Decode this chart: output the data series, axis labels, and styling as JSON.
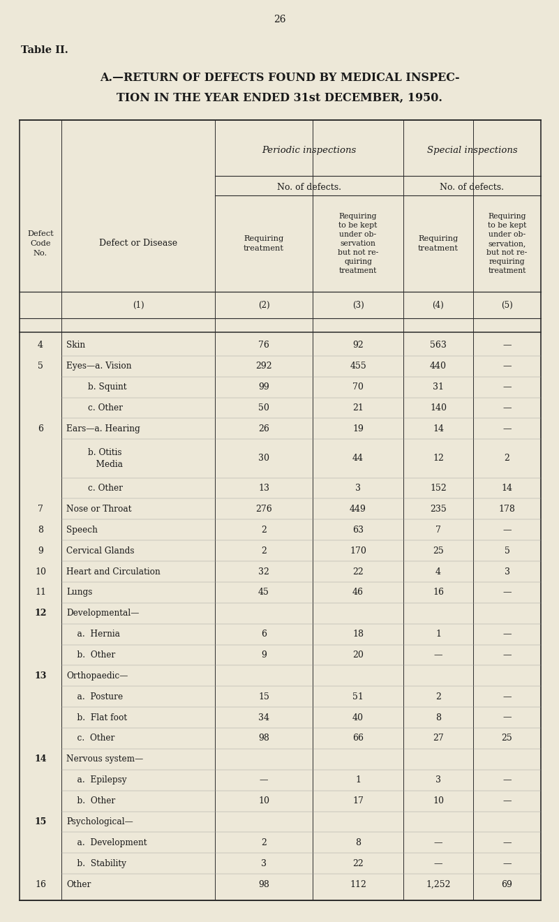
{
  "page_number": "26",
  "table_label": "Table II.",
  "title_line1": "A.—RETURN OF DEFECTS FOUND BY MEDICAL INSPEC-",
  "title_line2": "TION IN THE YEAR ENDED 31st DECEMBER, 1950.",
  "col_header_periodic": "Periodic inspections",
  "col_header_special": "Special inspections",
  "col_header_no_defects": "No. of defects.",
  "col1_header": "Defect\nCode\nNo.",
  "col_disease_header": "Defect or Disease",
  "col2_header": "Requiring\ntreatment",
  "col3_header": "Requiring\nto be kept\nunder ob-\nservation\nbut not re-\nquiring\ntreatment",
  "col4_header": "Requiring\ntreatment",
  "col5_header": "Requiring\nto be kept\nunder ob-\nservation,\nbut not re-\nrequiring\ntreatment",
  "col_num_labels": [
    "(1)",
    "(2)",
    "(3)",
    "(4)",
    "(5)"
  ],
  "rows": [
    {
      "code": "4",
      "disease": "Skin",
      "c2": "76",
      "c3": "92",
      "c4": "563",
      "c5": "—"
    },
    {
      "code": "5",
      "disease": "Eyes—a. Vision",
      "c2": "292",
      "c3": "455",
      "c4": "440",
      "c5": "—"
    },
    {
      "code": "",
      "disease": "        b. Squint",
      "c2": "99",
      "c3": "70",
      "c4": "31",
      "c5": "—"
    },
    {
      "code": "",
      "disease": "        c. Other",
      "c2": "50",
      "c3": "21",
      "c4": "140",
      "c5": "—"
    },
    {
      "code": "6",
      "disease": "Ears—a. Hearing",
      "c2": "26",
      "c3": "19",
      "c4": "14",
      "c5": "—"
    },
    {
      "code": "",
      "disease": "        b. Otitis\n           Media",
      "c2": "30",
      "c3": "44",
      "c4": "12",
      "c5": "2"
    },
    {
      "code": "",
      "disease": "        c. Other",
      "c2": "13",
      "c3": "3",
      "c4": "152",
      "c5": "14"
    },
    {
      "code": "7",
      "disease": "Nose or Throat",
      "c2": "276",
      "c3": "449",
      "c4": "235",
      "c5": "178"
    },
    {
      "code": "8",
      "disease": "Speech",
      "c2": "2",
      "c3": "63",
      "c4": "7",
      "c5": "—"
    },
    {
      "code": "9",
      "disease": "Cervical Glands",
      "c2": "2",
      "c3": "170",
      "c4": "25",
      "c5": "5"
    },
    {
      "code": "10",
      "disease": "Heart and Circulation",
      "c2": "32",
      "c3": "22",
      "c4": "4",
      "c5": "3"
    },
    {
      "code": "11",
      "disease": "Lungs",
      "c2": "45",
      "c3": "46",
      "c4": "16",
      "c5": "—"
    },
    {
      "code": "12",
      "disease": "Developmental—",
      "c2": "",
      "c3": "",
      "c4": "",
      "c5": ""
    },
    {
      "code": "",
      "disease": "    a.  Hernia",
      "c2": "6",
      "c3": "18",
      "c4": "1",
      "c5": "—"
    },
    {
      "code": "",
      "disease": "    b.  Other",
      "c2": "9",
      "c3": "20",
      "c4": "—",
      "c5": "—"
    },
    {
      "code": "13",
      "disease": "Orthopaedic—",
      "c2": "",
      "c3": "",
      "c4": "",
      "c5": ""
    },
    {
      "code": "",
      "disease": "    a.  Posture",
      "c2": "15",
      "c3": "51",
      "c4": "2",
      "c5": "—"
    },
    {
      "code": "",
      "disease": "    b.  Flat foot",
      "c2": "34",
      "c3": "40",
      "c4": "8",
      "c5": "—"
    },
    {
      "code": "",
      "disease": "    c.  Other",
      "c2": "98",
      "c3": "66",
      "c4": "27",
      "c5": "25"
    },
    {
      "code": "14",
      "disease": "Nervous system—",
      "c2": "",
      "c3": "",
      "c4": "",
      "c5": ""
    },
    {
      "code": "",
      "disease": "    a.  Epilepsy",
      "c2": "—",
      "c3": "1",
      "c4": "3",
      "c5": "—"
    },
    {
      "code": "",
      "disease": "    b.  Other",
      "c2": "10",
      "c3": "17",
      "c4": "10",
      "c5": "—"
    },
    {
      "code": "15",
      "disease": "Psychological—",
      "c2": "",
      "c3": "",
      "c4": "",
      "c5": ""
    },
    {
      "code": "",
      "disease": "    a.  Development",
      "c2": "2",
      "c3": "8",
      "c4": "—",
      "c5": "—"
    },
    {
      "code": "",
      "disease": "    b.  Stability",
      "c2": "3",
      "c3": "22",
      "c4": "—",
      "c5": "—"
    },
    {
      "code": "16",
      "disease": "Other",
      "c2": "98",
      "c3": "112",
      "c4": "1,252",
      "c5": "69"
    }
  ],
  "bg_color": "#ede8d8",
  "text_color": "#1a1a1a",
  "line_color": "#2a2a2a"
}
